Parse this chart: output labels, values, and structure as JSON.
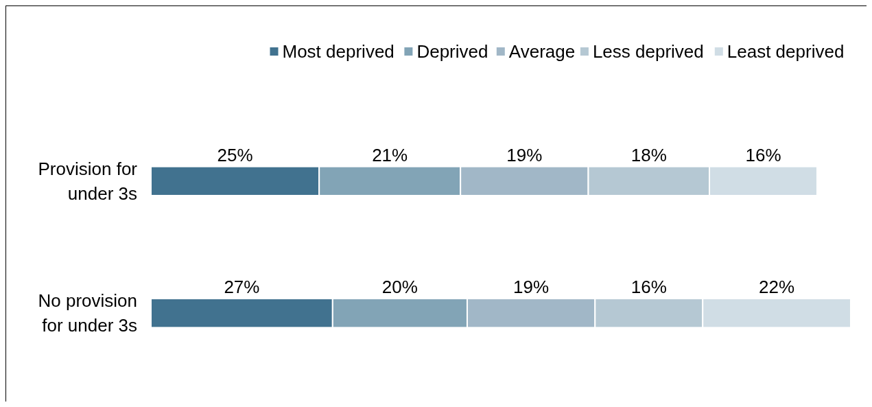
{
  "chart_data": {
    "type": "bar",
    "orientation": "horizontal",
    "stacked": true,
    "legend": "top right",
    "categories": [
      "Provision for under 3s",
      "No provision for under 3s"
    ],
    "series": [
      {
        "name": "Most deprived",
        "color": "#41728f",
        "values": [
          25,
          27
        ],
        "value_labels": [
          "25%",
          "27%"
        ]
      },
      {
        "name": "Deprived",
        "color": "#82a4b6",
        "values": [
          21,
          20
        ],
        "value_labels": [
          "21%",
          "20%"
        ]
      },
      {
        "name": "Average",
        "color": "#a1b7c7",
        "values": [
          19,
          19
        ],
        "value_labels": [
          "19%",
          "19%"
        ]
      },
      {
        "name": "Less deprived",
        "color": "#b5c8d3",
        "values": [
          18,
          16
        ],
        "value_labels": [
          "18%",
          "16%"
        ]
      },
      {
        "name": "Least deprived",
        "color": "#d0dde5",
        "values": [
          16,
          22
        ],
        "value_labels": [
          "16%",
          "22%"
        ]
      }
    ]
  }
}
